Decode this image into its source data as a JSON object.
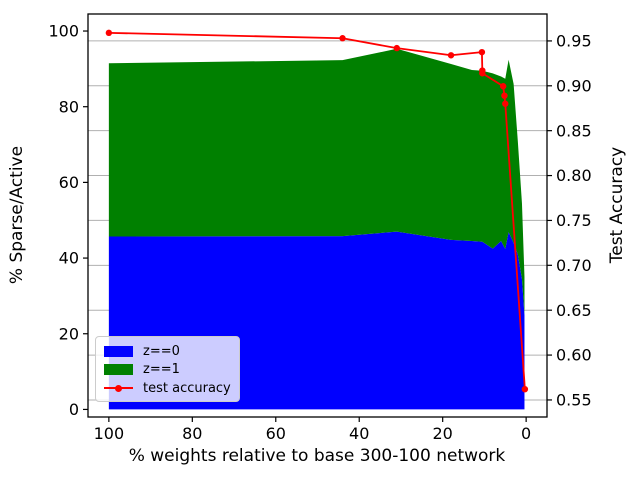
{
  "chart_data": {
    "type": "area",
    "subtype": "stacked-area-with-accuracy-line",
    "title": "",
    "xlabel": "% weights relative to base 300-100 network",
    "ylabel_left": "% Sparse/Active",
    "ylabel_right": "Test Accuracy",
    "x_axis_reversed": true,
    "xlim": [
      105,
      -5
    ],
    "ylim_left": [
      -2,
      104.5
    ],
    "ylim_right": [
      0.531,
      0.98
    ],
    "x_ticks": [
      100,
      80,
      60,
      40,
      20,
      0
    ],
    "y_ticks_left": [
      0,
      20,
      40,
      60,
      80,
      100
    ],
    "y_ticks_right": [
      "0.55",
      "0.60",
      "0.65",
      "0.70",
      "0.75",
      "0.80",
      "0.85",
      "0.90",
      "0.95"
    ],
    "grid": true,
    "colors": {
      "background": "#ffffff",
      "grid": "#b0b0b0",
      "spine": "#000000"
    },
    "stack": {
      "x": [
        100,
        44,
        31,
        18,
        13,
        10.5,
        8,
        6,
        5,
        4.2,
        3,
        2,
        1,
        0.4
      ],
      "series": [
        {
          "name": "z==0",
          "color": "#0000ff",
          "values": [
            45.7,
            45.8,
            47.0,
            44.8,
            44.5,
            44.3,
            42.5,
            44.5,
            42.4,
            46.9,
            44.0,
            41.0,
            34.5,
            25.0
          ]
        },
        {
          "name": "z==1",
          "color": "#008000",
          "values": [
            45.8,
            46.5,
            48.3,
            46.5,
            45.2,
            45.2,
            46.3,
            43.5,
            45.0,
            45.5,
            42.0,
            30.0,
            20.0,
            10.0
          ]
        }
      ]
    },
    "line": {
      "name": "test accuracy",
      "color": "#ff0000",
      "points": [
        [
          100,
          0.959
        ],
        [
          44,
          0.953
        ],
        [
          31,
          0.942
        ],
        [
          18,
          0.934
        ],
        [
          10.6,
          0.9375
        ],
        [
          10.5,
          0.917
        ],
        [
          10.5,
          0.914
        ],
        [
          5.5,
          0.8995
        ],
        [
          5.2,
          0.889
        ],
        [
          5.0,
          0.88
        ],
        [
          0.3,
          0.562
        ]
      ]
    },
    "legend": {
      "position": "lower left",
      "entries": [
        {
          "label": "z==0",
          "type": "patch",
          "color": "#0000ff"
        },
        {
          "label": "z==1",
          "type": "patch",
          "color": "#008000"
        },
        {
          "label": "test accuracy",
          "type": "line",
          "color": "#ff0000"
        }
      ]
    }
  }
}
